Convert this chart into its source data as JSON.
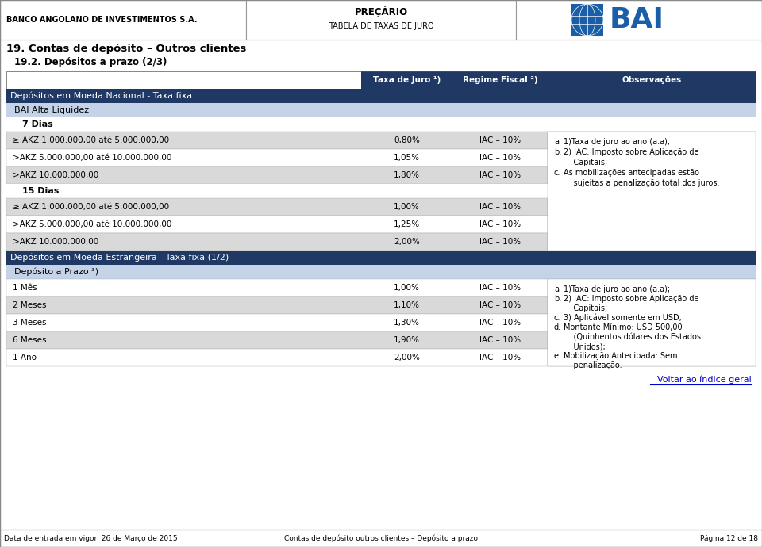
{
  "title_left": "BANCO ANGOLANO DE INVESTIMENTOS S.A.",
  "title_center_line1": "PREÇÁRIO",
  "title_center_line2": "TABELA DE TAXAS DE JURO",
  "section_title": "19. Contas de depósito – Outros clientes",
  "subsection_title": "19.2. Depósitos a prazo (2/3)",
  "col_header_bg": "#1f3864",
  "dark_blue": "#1f3864",
  "light_blue": "#c5d3e8",
  "row_bg_gray": "#d9d9d9",
  "row_bg_white": "#ffffff",
  "section1_title": "Depósitos em Moeda Nacional - Taxa fixa",
  "subsection1_title": "BAI Alta Liquidez",
  "group1_title": "7 Dias",
  "group1_rows": [
    [
      "≥ AKZ 1.000.000,00 até 5.000.000,00",
      "0,80%",
      "IAC – 10%"
    ],
    [
      ">AKZ 5.000.000,00 até 10.000.000,00",
      "1,05%",
      "IAC – 10%"
    ],
    [
      ">AKZ 10.000.000,00",
      "1,80%",
      "IAC – 10%"
    ]
  ],
  "group2_title": "15 Dias",
  "group2_rows": [
    [
      "≥ AKZ 1.000.000,00 até 5.000.000,00",
      "1,00%",
      "IAC – 10%"
    ],
    [
      ">AKZ 5.000.000,00 até 10.000.000,00",
      "1,25%",
      "IAC – 10%"
    ],
    [
      ">AKZ 10.000.000,00",
      "2,00%",
      "IAC – 10%"
    ]
  ],
  "section2_title": "Depósitos em Moeda Estrangeira - Taxa fixa (1/2)",
  "subsection2_title": "Depósito a Prazo",
  "subsection2_sup": "3)",
  "group3_rows": [
    [
      "1 Mês",
      "1,00%",
      "IAC – 10%"
    ],
    [
      "2 Meses",
      "1,10%",
      "IAC – 10%"
    ],
    [
      "3 Meses",
      "1,30%",
      "IAC – 10%"
    ],
    [
      "6 Meses",
      "1,90%",
      "IAC – 10%"
    ],
    [
      "1 Ano",
      "2,00%",
      "IAC – 10%"
    ]
  ],
  "obs1_lines": [
    [
      "a.",
      "1)Taxa de juro ao ano (a.a);"
    ],
    [
      "b.",
      "2) IAC: Imposto sobre Aplicação de"
    ],
    [
      "",
      "    Capitais;"
    ],
    [
      "c.",
      "As mobilizações antecipadas estão"
    ],
    [
      "",
      "    sujeitas a penalização total dos juros."
    ]
  ],
  "obs2_lines": [
    [
      "a.",
      "1)Taxa de juro ao ano (a.a);"
    ],
    [
      "b.",
      "2) IAC: Imposto sobre Aplicação de"
    ],
    [
      "",
      "    Capitais;"
    ],
    [
      "c.",
      "3) Aplicável somente em USD;"
    ],
    [
      "d.",
      "Montante Mínimo: USD 500,00"
    ],
    [
      "",
      "    (Quinhentos dólares dos Estados"
    ],
    [
      "",
      "    Unidos);"
    ],
    [
      "e.",
      "Mobilização Antecipada: Sem"
    ],
    [
      "",
      "    penalização."
    ]
  ],
  "link_text": "Voltar ao índice geral",
  "footer_left": "Data de entrada em vigor: 26 de Março de 2015",
  "footer_center": "Contas de depósito outros clientes – Depósito a prazo",
  "footer_right": "Página 12 de 18",
  "bg_color": "#ffffff"
}
